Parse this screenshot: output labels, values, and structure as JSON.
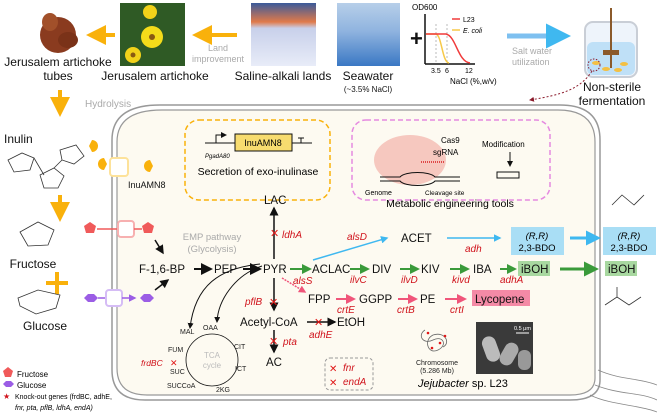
{
  "top": {
    "tubes_label": [
      "Jerusalem artichoke",
      "tubes"
    ],
    "artichoke_label": "Jerusalem artichoke",
    "land_improvement": [
      "Land",
      "improvement"
    ],
    "saline_label": "Saline-alkali lands",
    "seawater_label": "Seawater",
    "seawater_sub": "(~3.5% NaCl)",
    "plus": "+",
    "salt_water": [
      "Salt water",
      "utilization"
    ],
    "fermentation_label": [
      "Non-sterile",
      "fermentation"
    ],
    "hydrolysis": "Hydrolysis"
  },
  "inset_chart": {
    "ylabel": "OD600",
    "xlabel": "NaCl (%,w/v)",
    "xticks": [
      "3.5",
      "6",
      "12"
    ],
    "legend": [
      "L23",
      "E. coli"
    ],
    "colors": {
      "L23": "#f03a3a",
      "E. coli": "#f7c948"
    }
  },
  "sugars": {
    "inulin": "Inulin",
    "fructose": "Fructose",
    "glucose": "Glucose",
    "enzyme": "InuAMN8"
  },
  "cassette": {
    "gene": "InuAMN8",
    "promoter": "PgadA80",
    "caption": "Secretion of exo-inulinase"
  },
  "crispr": {
    "cas9": "Cas9",
    "sgrna": "sgRNA",
    "genome": "Genome",
    "cleavage": "Cleavage site",
    "modification": "Modification",
    "caption": "Metabolic engineering tools"
  },
  "pathway": {
    "emp": [
      "EMP pathway",
      "(Glycolysis)"
    ],
    "metabolites": {
      "f16bp": "F-1,6-BP",
      "pep": "PEP",
      "pyr": "PYR",
      "lac": "LAC",
      "aclac": "ACLAC",
      "acet": "ACET",
      "div": "DIV",
      "kiv": "KIV",
      "iba": "IBA",
      "iboh": "iBOH",
      "fpp": "FPP",
      "ggpp": "GGPP",
      "pe": "PE",
      "lycopene": "Lycopene",
      "acetylcoa": "Acetyl-CoA",
      "etoh": "EtOH",
      "ac": "AC",
      "bdo_top": "(R,R)",
      "bdo_bottom": "2,3-BDO"
    },
    "genes": {
      "ldhA": "ldhA",
      "alsD": "alsD",
      "adh": "adh",
      "alsS": "alsS",
      "ilvC": "ilvC",
      "ilvD": "ilvD",
      "kivd": "kivd",
      "adhA": "adhA",
      "crtE": "crtE",
      "crtB": "crtB",
      "crtI": "crtI",
      "pflB": "pflB",
      "adhE": "adhE",
      "pta": "pta",
      "frdBC": "frdBC",
      "fnr": "fnr",
      "endA": "endA"
    },
    "tca": {
      "label": [
        "TCA",
        "cycle"
      ],
      "nodes": [
        "MAL",
        "OAA",
        "CIT",
        "ICT",
        "2KG",
        "SUCCoA",
        "SUC",
        "FUM"
      ]
    }
  },
  "strain": {
    "chromosome": "Chromosome",
    "size": "(5.286 Mb)",
    "scale": "0.5 μm",
    "name_italic": "Jejubacter",
    "name_rest": " sp. L23"
  },
  "legend": {
    "fructose": "Fructose",
    "glucose": "Glucose",
    "knockout": "Knock-out genes (frdBC, adhE,",
    "knockout2": "fnr, pta, pflB, ldhA, endA)"
  },
  "colors": {
    "orange": "#f9b10b",
    "blue": "#3fb8f0",
    "green": "#3a9a3a",
    "pink": "#f0557a",
    "red": "#d0121b",
    "purple": "#9b5de5",
    "fructose": "#f05a5a",
    "bdo_box": "#a9def5",
    "iboh_box": "#a8d8a0",
    "lycopene_box": "#f48aa6",
    "cell": "#fdfaf1"
  }
}
